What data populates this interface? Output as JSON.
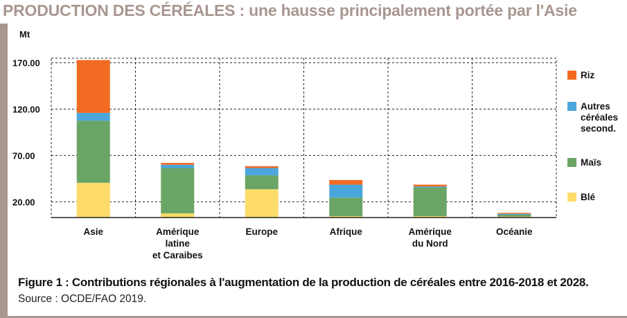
{
  "banner_title": "PRODUCTION DES CÉRÉALES : une hausse principalement portée par l'Asie",
  "caption": "Figure 1  : Contributions régionales à l'augmentation de la production de céréales entre 2016-2018 et 2028.",
  "source": "Source : OCDE/FAO 2019.",
  "colors": {
    "accent": "#a89690",
    "riz": "#f26b23",
    "autres": "#4ba6dc",
    "mais": "#6ba566",
    "ble": "#fddc6a"
  },
  "chart_data": {
    "type": "bar",
    "stacked": true,
    "ylabel": "Mt",
    "ylim": [
      3,
      175
    ],
    "yticks": [
      20,
      70,
      120,
      170
    ],
    "ytick_labels": [
      "20.00",
      "70.00",
      "120.00",
      "170.00"
    ],
    "grid": true,
    "legend_position": "right",
    "categories": [
      [
        "Asie"
      ],
      [
        "Amérique",
        "latine",
        "et Caraibes"
      ],
      [
        "Europe"
      ],
      [
        "Afrique"
      ],
      [
        "Amérique",
        "du Nord"
      ],
      [
        "Océanie"
      ]
    ],
    "series": [
      {
        "name": "Blé",
        "color": "#fddc6a",
        "values": [
          37.5,
          4.5,
          30.5,
          1.5,
          1.5,
          1
        ]
      },
      {
        "name": "Maïs",
        "color": "#6ba566",
        "values": [
          67,
          49,
          15,
          20,
          31,
          2
        ]
      },
      {
        "name": "Autres céréales second.",
        "name_lines": [
          "Autres",
          "céréales",
          "second."
        ],
        "color": "#4ba6dc",
        "values": [
          8.5,
          3.5,
          8,
          14,
          1,
          1
        ]
      },
      {
        "name": "Riz",
        "color": "#f26b23",
        "values": [
          57,
          2,
          2,
          5,
          2,
          1
        ]
      }
    ]
  }
}
